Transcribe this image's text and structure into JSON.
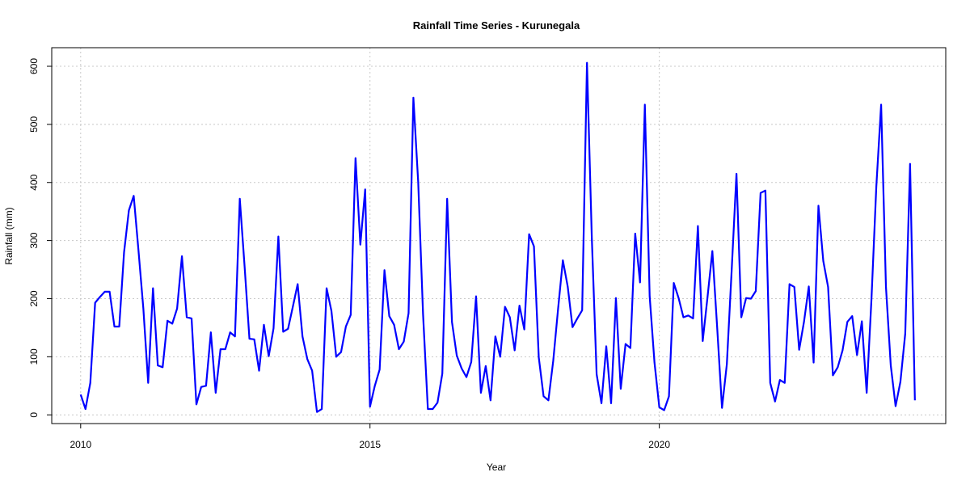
{
  "chart_data": {
    "type": "line",
    "title": "Rainfall Time Series - Kurunegala",
    "xlabel": "Year",
    "ylabel": "Rainfall (mm)",
    "xlim": [
      2009.5,
      2024.95
    ],
    "ylim": [
      -15,
      632
    ],
    "x_ticks": [
      2010,
      2015,
      2020
    ],
    "y_ticks": [
      0,
      100,
      200,
      300,
      400,
      500,
      600
    ],
    "grid": true,
    "line_color": "#0000ff",
    "series": [
      {
        "start": 2010.0,
        "step": 0.0833333,
        "values": [
          35,
          10,
          55,
          193,
          203,
          212,
          212,
          152,
          152,
          280,
          352,
          377,
          282,
          183,
          55,
          218,
          85,
          82,
          162,
          157,
          183,
          273,
          168,
          166,
          18,
          48,
          50,
          142,
          38,
          113,
          113,
          142,
          135,
          372,
          255,
          131,
          130,
          76,
          155,
          101,
          149,
          307,
          143,
          148,
          186,
          225,
          135,
          96,
          76,
          5,
          10,
          218,
          179,
          100,
          108,
          152,
          172,
          442,
          293,
          388,
          14,
          50,
          78,
          249,
          170,
          155,
          113,
          126,
          175,
          546,
          400,
          174,
          10,
          10,
          21,
          71,
          372,
          160,
          102,
          80,
          65,
          91,
          204,
          38,
          84,
          25,
          135,
          100,
          186,
          168,
          111,
          188,
          147,
          311,
          290,
          99,
          32,
          25,
          93,
          182,
          266,
          221,
          151,
          166,
          180,
          606,
          305,
          70,
          20,
          118,
          20,
          201,
          45,
          122,
          115,
          312,
          228,
          534,
          204,
          90,
          13,
          8,
          32,
          227,
          201,
          168,
          171,
          166,
          325,
          127,
          203,
          282,
          150,
          12,
          87,
          248,
          415,
          168,
          201,
          200,
          213,
          382,
          386,
          55,
          23,
          60,
          55,
          225,
          220,
          112,
          160,
          221,
          90,
          360,
          265,
          220,
          68,
          82,
          111,
          160,
          170,
          103,
          161,
          38,
          200,
          393,
          534,
          220,
          85,
          15,
          57,
          140,
          432,
          25
        ]
      }
    ]
  }
}
